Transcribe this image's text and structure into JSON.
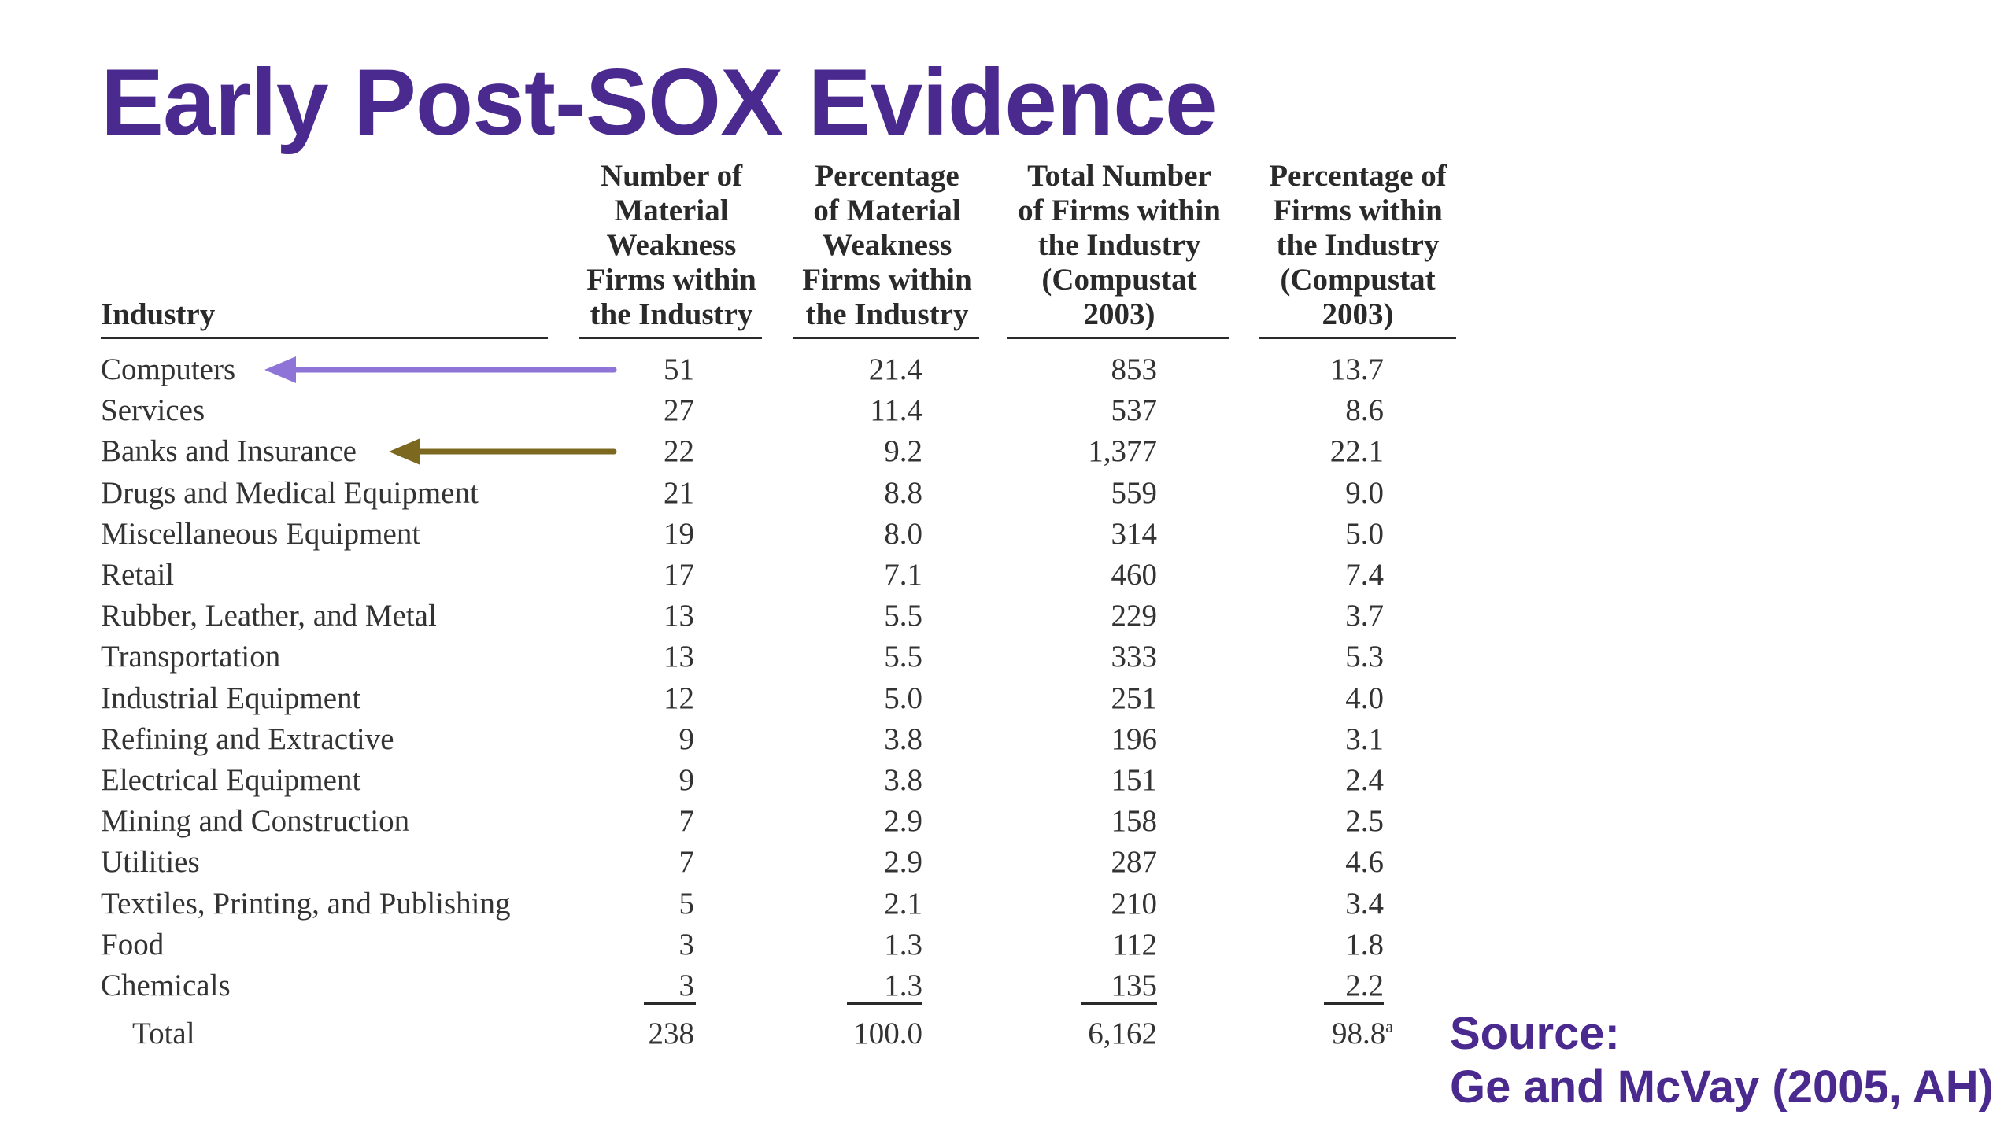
{
  "slide": {
    "title": "Early Post-SOX Evidence",
    "source_line1": "Source:",
    "source_line2": "Ge and McVay (2005, AH)"
  },
  "table": {
    "headers": [
      "Industry",
      "Number of\nMaterial\nWeakness\nFirms within\nthe Industry",
      "Percentage\nof Material\nWeakness\nFirms within\nthe Industry",
      "Total Number\nof Firms within\nthe Industry\n(Compustat\n2003)",
      "Percentage of\nFirms within\nthe Industry\n(Compustat\n2003)"
    ],
    "rows": [
      [
        "Computers",
        "51",
        "21.4",
        "853",
        "13.7"
      ],
      [
        "Services",
        "27",
        "11.4",
        "537",
        "8.6"
      ],
      [
        "Banks and Insurance",
        "22",
        "9.2",
        "1,377",
        "22.1"
      ],
      [
        "Drugs and Medical Equipment",
        "21",
        "8.8",
        "559",
        "9.0"
      ],
      [
        "Miscellaneous Equipment",
        "19",
        "8.0",
        "314",
        "5.0"
      ],
      [
        "Retail",
        "17",
        "7.1",
        "460",
        "7.4"
      ],
      [
        "Rubber, Leather, and Metal",
        "13",
        "5.5",
        "229",
        "3.7"
      ],
      [
        "Transportation",
        "13",
        "5.5",
        "333",
        "5.3"
      ],
      [
        "Industrial Equipment",
        "12",
        "5.0",
        "251",
        "4.0"
      ],
      [
        "Refining and Extractive",
        "9",
        "3.8",
        "196",
        "3.1"
      ],
      [
        "Electrical Equipment",
        "9",
        "3.8",
        "151",
        "2.4"
      ],
      [
        "Mining and Construction",
        "7",
        "2.9",
        "158",
        "2.5"
      ],
      [
        "Utilities",
        "7",
        "2.9",
        "287",
        "4.6"
      ],
      [
        "Textiles, Printing, and Publishing",
        "5",
        "2.1",
        "210",
        "3.4"
      ],
      [
        "Food",
        "3",
        "1.3",
        "112",
        "1.8"
      ],
      [
        "Chemicals",
        "3",
        "1.3",
        "135",
        "2.2"
      ]
    ],
    "total": [
      "Total",
      "238",
      "100.0",
      "6,162",
      "98.8"
    ],
    "total_footnote": "a"
  },
  "highlights": {
    "computers_arrow_color": "#8e74d6",
    "banks_arrow_color": "#7d6820"
  }
}
